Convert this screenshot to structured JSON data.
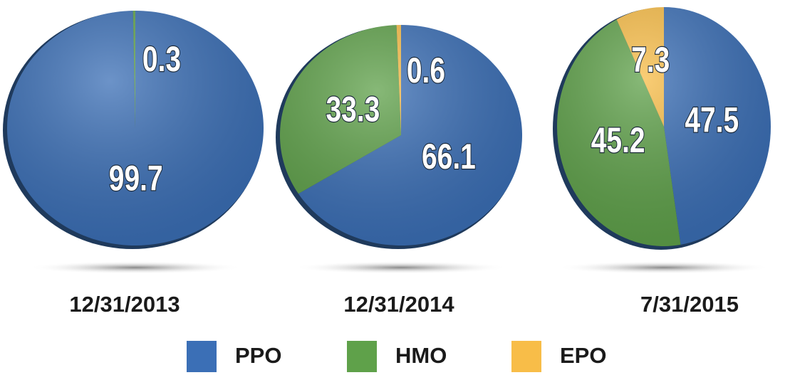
{
  "chart_data": [
    {
      "type": "pie",
      "title": "12/31/2013",
      "values": [
        99.7,
        0.3
      ]
    },
    {
      "type": "pie",
      "title": "12/31/2014",
      "values": [
        66.1,
        33.3,
        0.6
      ]
    },
    {
      "type": "pie",
      "title": "7/31/2015",
      "values": [
        47.5,
        45.2,
        7.3
      ]
    }
  ],
  "legend": {
    "categories": [
      "PPO",
      "HMO",
      "EPO"
    ],
    "colors": [
      "#3b6fb6",
      "#5fa14a",
      "#f8bd48"
    ]
  }
}
